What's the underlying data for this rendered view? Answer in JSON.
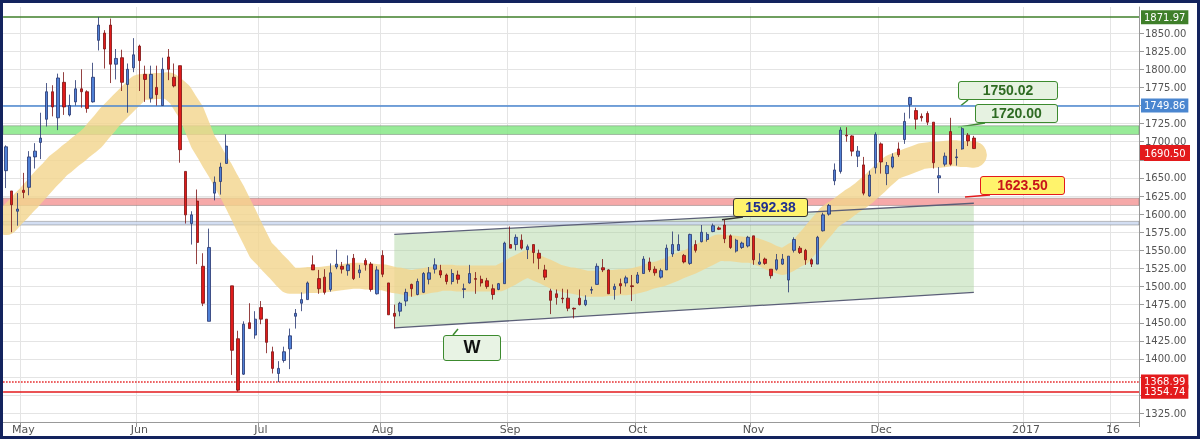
{
  "chart_data": {
    "type": "candlestick",
    "categories": [
      null,
      null,
      null,
      "May",
      null,
      null,
      null,
      null,
      null,
      null,
      null,
      null,
      null,
      null,
      null,
      null,
      null,
      null,
      null,
      null,
      null,
      null,
      null,
      "Jun",
      null,
      null,
      null,
      null,
      null,
      null,
      null,
      null,
      null,
      null,
      null,
      null,
      null,
      null,
      null,
      null,
      null,
      null,
      null,
      null,
      "Jul",
      null,
      null,
      null,
      null,
      null,
      null,
      null,
      null,
      null,
      null,
      null,
      null,
      null,
      null,
      null,
      null,
      null,
      null,
      null,
      null,
      "Aug",
      null,
      null,
      null,
      null,
      null,
      null,
      null,
      null,
      null,
      null,
      null,
      null,
      null,
      null,
      null,
      null,
      null,
      null,
      null,
      null,
      null,
      "Sep",
      null,
      null,
      null,
      null,
      null,
      null,
      null,
      null,
      null,
      null,
      null,
      null,
      null,
      null,
      null,
      null,
      null,
      null,
      null,
      null,
      null,
      "Oct",
      null,
      null,
      null,
      null,
      null,
      null,
      null,
      null,
      null,
      null,
      null,
      null,
      null,
      null,
      null,
      null,
      null,
      null,
      null,
      "Nov",
      null,
      null,
      null,
      null,
      null,
      null,
      null,
      null,
      null,
      null,
      null,
      null,
      null,
      null,
      null,
      null,
      null,
      null,
      null,
      null,
      null,
      "Dec",
      null,
      null,
      null,
      null,
      null,
      null,
      null,
      null,
      null,
      null,
      null,
      null,
      null,
      null,
      null,
      null,
      null,
      null,
      null,
      null,
      null,
      null,
      null,
      null,
      "2017",
      null,
      null,
      null,
      null,
      null,
      null,
      null,
      null,
      null,
      null,
      null,
      null,
      null,
      null,
      "16",
      null,
      null,
      null,
      null
    ],
    "series": [
      {
        "ohlc": [
          [
            1660,
            1695,
            1636,
            1693
          ],
          [
            1632,
            1632,
            1575,
            1613
          ],
          [
            1604,
            1629,
            1584,
            1607
          ],
          [
            1633,
            1657,
            1622,
            1630
          ],
          [
            1637,
            1687,
            1626,
            1679
          ],
          [
            1679,
            1698,
            1663,
            1687
          ],
          [
            1699,
            1740,
            1676,
            1705
          ],
          [
            1731,
            1781,
            1721,
            1769
          ],
          [
            1769,
            1778,
            1735,
            1748
          ],
          [
            1733,
            1794,
            1716,
            1788
          ],
          [
            1782,
            1796,
            1737,
            1748
          ],
          [
            1737,
            1765,
            1735,
            1750
          ],
          [
            1755,
            1785,
            1750,
            1773
          ],
          [
            1773,
            1800,
            1747,
            1769
          ],
          [
            1769,
            1771,
            1740,
            1746
          ],
          [
            1755,
            1809,
            1754,
            1789
          ],
          [
            1840,
            1872,
            1826,
            1861
          ],
          [
            1850,
            1854,
            1801,
            1828
          ],
          [
            1861,
            1870,
            1781,
            1807
          ],
          [
            1807,
            1828,
            1786,
            1815
          ],
          [
            1816,
            1827,
            1770,
            1782
          ],
          [
            1779,
            1808,
            1740,
            1800
          ],
          [
            1802,
            1843,
            1796,
            1820
          ],
          [
            1832,
            1834,
            1770,
            1812
          ],
          [
            1793,
            1805,
            1755,
            1786
          ],
          [
            1760,
            1805,
            1754,
            1793
          ],
          [
            1775,
            1805,
            1750,
            1765
          ],
          [
            1750,
            1816,
            1750,
            1800
          ],
          [
            1817,
            1828,
            1785,
            1800
          ],
          [
            1789,
            1808,
            1775,
            1777
          ],
          [
            1805,
            1805,
            1671,
            1689
          ],
          [
            1659,
            1659,
            1587,
            1599
          ],
          [
            1587,
            1604,
            1558,
            1599
          ],
          [
            1618,
            1634,
            1531,
            1561
          ],
          [
            1528,
            1546,
            1473,
            1477
          ],
          [
            1452,
            1580,
            1452,
            1554
          ],
          [
            1629,
            1652,
            1619,
            1644
          ],
          [
            1645,
            1671,
            1627,
            1665
          ],
          [
            1670,
            1710,
            1670,
            1694
          ],
          [
            1501,
            1501,
            1378,
            1412
          ],
          [
            1428,
            1439,
            1355,
            1357
          ],
          [
            1379,
            1452,
            1378,
            1448
          ],
          [
            1450,
            1477,
            1442,
            1442
          ],
          [
            1433,
            1466,
            1428,
            1455
          ],
          [
            1471,
            1480,
            1448,
            1455
          ],
          [
            1455,
            1455,
            1408,
            1423
          ],
          [
            1410,
            1417,
            1380,
            1387
          ],
          [
            1380,
            1397,
            1368,
            1387
          ],
          [
            1398,
            1417,
            1395,
            1410
          ],
          [
            1414,
            1442,
            1386,
            1432
          ],
          [
            1459,
            1469,
            1442,
            1463
          ],
          [
            1477,
            1492,
            1466,
            1482
          ],
          [
            1482,
            1507,
            1482,
            1505
          ],
          [
            1530,
            1543,
            1523,
            1523
          ],
          [
            1511,
            1523,
            1490,
            1497
          ],
          [
            1513,
            1524,
            1489,
            1492
          ],
          [
            1496,
            1532,
            1493,
            1519
          ],
          [
            1527,
            1551,
            1524,
            1531
          ],
          [
            1528,
            1534,
            1518,
            1524
          ],
          [
            1522,
            1543,
            1515,
            1530
          ],
          [
            1539,
            1545,
            1509,
            1511
          ],
          [
            1519,
            1530,
            1512,
            1523
          ],
          [
            1536,
            1539,
            1522,
            1530
          ],
          [
            1531,
            1534,
            1493,
            1496
          ],
          [
            1490,
            1528,
            1489,
            1523
          ],
          [
            1543,
            1550,
            1513,
            1517
          ],
          [
            1505,
            1505,
            1461,
            1461
          ],
          [
            1463,
            1475,
            1442,
            1459
          ],
          [
            1466,
            1479,
            1459,
            1477
          ],
          [
            1480,
            1497,
            1473,
            1492
          ],
          [
            1503,
            1504,
            1486,
            1497
          ],
          [
            1489,
            1511,
            1488,
            1507
          ],
          [
            1492,
            1520,
            1491,
            1518
          ],
          [
            1510,
            1527,
            1503,
            1519
          ],
          [
            1524,
            1539,
            1518,
            1530
          ],
          [
            1522,
            1530,
            1512,
            1516
          ],
          [
            1516,
            1518,
            1503,
            1507
          ],
          [
            1507,
            1524,
            1503,
            1518
          ],
          [
            1516,
            1522,
            1504,
            1510
          ],
          [
            1496,
            1504,
            1484,
            1497
          ],
          [
            1505,
            1530,
            1504,
            1518
          ],
          [
            1511,
            1520,
            1490,
            1510
          ],
          [
            1510,
            1515,
            1500,
            1505
          ],
          [
            1508,
            1512,
            1497,
            1500
          ],
          [
            1497,
            1503,
            1482,
            1489
          ],
          [
            1496,
            1505,
            1495,
            1504
          ],
          [
            1504,
            1562,
            1504,
            1560
          ],
          [
            1558,
            1583,
            1553,
            1553
          ],
          [
            1558,
            1572,
            1550,
            1568
          ],
          [
            1564,
            1572,
            1551,
            1553
          ],
          [
            1551,
            1558,
            1538,
            1555
          ],
          [
            1558,
            1558,
            1532,
            1547
          ],
          [
            1546,
            1551,
            1524,
            1539
          ],
          [
            1523,
            1530,
            1509,
            1513
          ],
          [
            1494,
            1497,
            1462,
            1481
          ],
          [
            1490,
            1496,
            1475,
            1485
          ],
          [
            1484,
            1497,
            1477,
            1483
          ],
          [
            1484,
            1496,
            1466,
            1470
          ],
          [
            1470,
            1471,
            1456,
            1469
          ],
          [
            1484,
            1496,
            1474,
            1475
          ],
          [
            1475,
            1488,
            1473,
            1481
          ],
          [
            1495,
            1500,
            1490,
            1496
          ],
          [
            1503,
            1532,
            1503,
            1528
          ],
          [
            1526,
            1538,
            1520,
            1523
          ],
          [
            1523,
            1524,
            1490,
            1490
          ],
          [
            1496,
            1504,
            1482,
            1500
          ],
          [
            1504,
            1511,
            1490,
            1501
          ],
          [
            1505,
            1515,
            1500,
            1512
          ],
          [
            1501,
            1516,
            1480,
            1500
          ],
          [
            1505,
            1520,
            1504,
            1516
          ],
          [
            1518,
            1542,
            1518,
            1538
          ],
          [
            1534,
            1540,
            1520,
            1523
          ],
          [
            1524,
            1528,
            1515,
            1519
          ],
          [
            1513,
            1525,
            1511,
            1522
          ],
          [
            1523,
            1558,
            1523,
            1553
          ],
          [
            1545,
            1576,
            1541,
            1558
          ],
          [
            1550,
            1572,
            1549,
            1558
          ],
          [
            1543,
            1545,
            1532,
            1534
          ],
          [
            1532,
            1573,
            1530,
            1572
          ],
          [
            1558,
            1564,
            1547,
            1550
          ],
          [
            1562,
            1585,
            1561,
            1575
          ],
          [
            1565,
            1575,
            1562,
            1572
          ],
          [
            1576,
            1587,
            1575,
            1584
          ],
          [
            1581,
            1583,
            1578,
            1579
          ],
          [
            1585,
            1592.38,
            1560,
            1566
          ],
          [
            1570,
            1572,
            1552,
            1554
          ],
          [
            1549,
            1566,
            1547,
            1564
          ],
          [
            1554,
            1562,
            1552,
            1560
          ],
          [
            1556,
            1570,
            1554,
            1568
          ],
          [
            1570,
            1570,
            1530,
            1537
          ],
          [
            1531,
            1546,
            1530,
            1534
          ],
          [
            1538,
            1540,
            1530,
            1532
          ],
          [
            1524,
            1524,
            1511,
            1515
          ],
          [
            1524,
            1545,
            1522,
            1537
          ],
          [
            1531,
            1545,
            1530,
            1538
          ],
          [
            1509,
            1542,
            1492,
            1542
          ],
          [
            1550,
            1568,
            1547,
            1565
          ],
          [
            1553,
            1556,
            1545,
            1547
          ],
          [
            1550,
            1552,
            1530,
            1537
          ],
          [
            1537,
            1539,
            1527,
            1531
          ],
          [
            1531,
            1570,
            1531,
            1568
          ],
          [
            1577,
            1602,
            1576,
            1599
          ],
          [
            1600,
            1614,
            1598,
            1612
          ],
          [
            1646,
            1670,
            1640,
            1661
          ],
          [
            1659,
            1720,
            1656,
            1716
          ],
          [
            1709,
            1720,
            1700,
            1708
          ],
          [
            1708,
            1709,
            1680,
            1687
          ],
          [
            1680,
            1694,
            1665,
            1687
          ],
          [
            1668,
            1679,
            1626,
            1629
          ],
          [
            1625,
            1660,
            1624,
            1654
          ],
          [
            1664,
            1713,
            1656,
            1710
          ],
          [
            1697,
            1699,
            1656,
            1672
          ],
          [
            1656,
            1672,
            1640,
            1667
          ],
          [
            1665,
            1684,
            1663,
            1679
          ],
          [
            1690,
            1699,
            1679,
            1682
          ],
          [
            1703,
            1740,
            1697,
            1728
          ],
          [
            1751,
            1762,
            1732,
            1761
          ],
          [
            1743,
            1747,
            1717,
            1731
          ],
          [
            1735,
            1739,
            1728,
            1733
          ],
          [
            1739,
            1742,
            1723,
            1727
          ],
          [
            1727,
            1727,
            1663,
            1671
          ],
          [
            1650,
            1665,
            1629,
            1653
          ],
          [
            1669,
            1685,
            1666,
            1680
          ],
          [
            1714,
            1733,
            1667,
            1669
          ],
          [
            1678,
            1690,
            1667,
            1679
          ],
          [
            1690,
            1720,
            1689,
            1718
          ],
          [
            1709,
            1712,
            1694,
            1701
          ],
          [
            1705,
            1708,
            1690,
            1690.5
          ],
          null,
          null,
          null,
          null,
          null,
          null,
          null,
          null,
          null,
          null,
          null,
          null,
          null,
          null,
          null,
          null,
          null,
          null,
          null,
          null,
          null,
          null,
          null,
          null,
          null,
          null,
          null,
          null
        ]
      },
      {
        "type": "line",
        "color": "#f3d58c",
        "values": [
          1589,
          1598,
          1606,
          1615,
          1623,
          1632,
          1641,
          1650,
          1658,
          1667,
          1673,
          1680,
          1686,
          1693,
          1699,
          1706,
          1716,
          1725,
          1735,
          1743,
          1751,
          1759,
          1767,
          1775,
          1776,
          1776,
          1777,
          1777,
          1778,
          1772,
          1765,
          1752,
          1740,
          1720,
          1700,
          1687,
          1673,
          1660,
          1645,
          1631,
          1615,
          1599,
          1582,
          1566,
          1550,
          1542,
          1533,
          1525,
          1516,
          1508,
          1508,
          1508,
          1509,
          1509,
          1509,
          1510,
          1511,
          1512,
          1513,
          1514,
          1515,
          1515,
          1514,
          1514,
          1513,
          1513,
          1511,
          1509,
          1508,
          1506,
          1504,
          1506,
          1507,
          1509,
          1510,
          1512,
          1512,
          1512,
          1511,
          1511,
          1511,
          1511,
          1511,
          1511,
          1511,
          1511,
          1515,
          1519,
          1524,
          1528,
          1532,
          1528,
          1524,
          1521,
          1517,
          1513,
          1511,
          1509,
          1508,
          1506,
          1504,
          1504,
          1504,
          1504,
          1505,
          1505,
          1506,
          1506,
          1507,
          1509,
          1511,
          1514,
          1516,
          1518,
          1521,
          1524,
          1528,
          1531,
          1534,
          1538,
          1542,
          1546,
          1550,
          1554,
          1553,
          1553,
          1552,
          1551,
          1551,
          1550,
          1547,
          1544,
          1540,
          1537,
          1534,
          1538,
          1543,
          1547,
          1557,
          1566,
          1576,
          1585,
          1595,
          1601,
          1606,
          1612,
          1618,
          1623,
          1629,
          1636,
          1643,
          1651,
          1658,
          1665,
          1668,
          1671,
          1674,
          1677,
          1680,
          1681,
          1682,
          1682,
          1683,
          1684,
          1684,
          1683,
          1683,
          1682,
          null,
          null,
          null,
          null,
          null,
          null,
          null,
          null,
          null,
          null,
          null,
          null,
          null,
          null,
          null,
          null,
          null,
          null,
          null,
          null,
          null,
          null,
          null,
          null,
          null,
          null,
          null,
          null
        ]
      },
      {
        "type": "line",
        "color": "#5b5f78",
        "values": [
          null,
          null,
          null,
          null,
          null,
          null,
          null,
          null,
          null,
          null,
          null,
          null,
          null,
          null,
          null,
          null,
          null,
          null,
          null,
          null,
          null,
          null,
          null,
          null,
          null,
          null,
          null,
          null,
          null,
          null,
          null,
          null,
          null,
          null,
          null,
          null,
          null,
          null,
          null,
          null,
          null,
          null,
          null,
          null,
          null,
          null,
          null,
          null,
          null,
          null,
          null,
          null,
          null,
          null,
          null,
          null,
          null,
          null,
          null,
          null,
          null,
          null,
          null,
          null,
          null,
          null,
          null,
          1572,
          null,
          null,
          null,
          null,
          null,
          null,
          null,
          null,
          null,
          null,
          null,
          null,
          null,
          null,
          null,
          null,
          null,
          null,
          null,
          null,
          null,
          null,
          null,
          null,
          null,
          null,
          null,
          null,
          null,
          null,
          null,
          null,
          null,
          null,
          null,
          null,
          null,
          null,
          null,
          null,
          null,
          null,
          null,
          null,
          null,
          null,
          null,
          null,
          null,
          null,
          null,
          null,
          null,
          null,
          null,
          null,
          null,
          null,
          null,
          null,
          null,
          null,
          null,
          null,
          null,
          null,
          null,
          null,
          null,
          null,
          null,
          null,
          null,
          null,
          null,
          null,
          null,
          null,
          null,
          null,
          null,
          null,
          null,
          null,
          null,
          null,
          null,
          null,
          null,
          null,
          null,
          null,
          null,
          null,
          null,
          null,
          null,
          null,
          null,
          1615,
          null,
          null,
          null,
          null,
          null,
          null,
          null,
          null,
          null,
          null,
          null,
          null,
          null,
          null,
          null,
          null,
          null,
          null,
          null,
          null,
          null,
          null,
          null,
          null,
          null,
          null,
          null,
          null
        ],
        "upper": [
          null,
          null,
          null,
          null,
          null,
          null,
          null,
          null,
          null,
          null,
          null,
          null,
          null,
          null,
          null,
          null,
          null,
          null,
          null,
          null,
          null,
          null,
          null,
          null,
          null,
          null,
          null,
          null,
          null,
          null,
          null,
          null,
          null,
          null,
          null,
          null,
          null,
          null,
          null,
          null,
          null,
          null,
          null,
          null,
          null,
          null,
          null,
          null,
          null,
          null,
          null,
          null,
          null,
          null,
          null,
          null,
          null,
          null,
          null,
          null,
          null,
          null,
          null,
          null,
          null,
          null,
          null,
          1572,
          null,
          null,
          null,
          null,
          null,
          null,
          null,
          null,
          null,
          null,
          null,
          null,
          null,
          null,
          null,
          null,
          null,
          null,
          null,
          null,
          null,
          null,
          null,
          null,
          null,
          null,
          null,
          null,
          null,
          null,
          null,
          null,
          null,
          null,
          null,
          null,
          null,
          null,
          null,
          null,
          null,
          null,
          null,
          null,
          null,
          null,
          null,
          null,
          null,
          null,
          null,
          null,
          null,
          null,
          null,
          null,
          null,
          null,
          null,
          null,
          null,
          null,
          null,
          null,
          null,
          null,
          null,
          null,
          null,
          null,
          null,
          null,
          null,
          null,
          null,
          null,
          null,
          null,
          null,
          null,
          null,
          null,
          null,
          null,
          null,
          null,
          null,
          null,
          null,
          null,
          null,
          null,
          null,
          null,
          null,
          null,
          null,
          null,
          null,
          1615,
          null,
          null,
          null,
          null,
          null,
          null,
          null,
          null,
          null,
          null,
          null,
          null,
          null,
          null,
          null,
          null,
          null,
          null,
          null,
          null,
          null,
          null,
          null,
          null,
          null,
          null,
          null,
          null
        ],
        "lower": [
          null,
          null,
          null,
          null,
          null,
          null,
          null,
          null,
          null,
          null,
          null,
          null,
          null,
          null,
          null,
          null,
          null,
          null,
          null,
          null,
          null,
          null,
          null,
          null,
          null,
          null,
          null,
          null,
          null,
          null,
          null,
          null,
          null,
          null,
          null,
          null,
          null,
          null,
          null,
          null,
          null,
          null,
          null,
          null,
          null,
          null,
          null,
          null,
          null,
          null,
          null,
          null,
          null,
          null,
          null,
          null,
          null,
          null,
          null,
          null,
          null,
          null,
          null,
          null,
          null,
          null,
          null,
          1443,
          null,
          null,
          null,
          null,
          null,
          null,
          null,
          null,
          null,
          null,
          null,
          null,
          null,
          null,
          null,
          null,
          null,
          null,
          null,
          null,
          null,
          null,
          null,
          null,
          null,
          null,
          null,
          null,
          null,
          null,
          null,
          null,
          null,
          null,
          null,
          null,
          null,
          null,
          null,
          null,
          null,
          null,
          null,
          null,
          null,
          null,
          null,
          null,
          null,
          null,
          null,
          null,
          null,
          null,
          null,
          null,
          null,
          null,
          null,
          null,
          null,
          null,
          null,
          null,
          null,
          null,
          null,
          null,
          null,
          null,
          null,
          null,
          null,
          null,
          null,
          null,
          null,
          null,
          null,
          null,
          null,
          null,
          null,
          null,
          null,
          null,
          null,
          null,
          null,
          null,
          null,
          null,
          null,
          null,
          null,
          null,
          null,
          null,
          null,
          1492,
          null,
          null,
          null,
          null,
          null,
          null,
          null,
          null,
          null,
          null,
          null,
          null,
          null,
          null,
          null,
          null,
          null,
          null,
          null,
          null,
          null,
          null,
          null,
          null,
          null,
          null,
          null,
          null
        ]
      },
      {
        "type": "line",
        "color": "#5b5f78",
        "line_style": "solid",
        "values": [
          null,
          null,
          null,
          null,
          null,
          null,
          null,
          null,
          null,
          null,
          null,
          null,
          null,
          null,
          null,
          null,
          null,
          null,
          null,
          null,
          null,
          null,
          null,
          null,
          null,
          null,
          null,
          null,
          null,
          null,
          null,
          null,
          null,
          null,
          null,
          null,
          null,
          null,
          null,
          null,
          null,
          null,
          null,
          null,
          null,
          null,
          null,
          null,
          null,
          null,
          null,
          null,
          null,
          null,
          null,
          null,
          null,
          null,
          null,
          null,
          null,
          null,
          null,
          null,
          null,
          null,
          null,
          1443,
          null,
          null,
          null,
          null,
          null,
          null,
          null,
          null,
          null,
          null,
          null,
          null,
          null,
          null,
          null,
          null,
          null,
          null,
          null,
          null,
          null,
          null,
          null,
          null,
          null,
          null,
          null,
          null,
          null,
          null,
          null,
          null,
          null,
          null,
          null,
          null,
          null,
          null,
          null,
          null,
          null,
          null,
          null,
          null,
          null,
          null,
          null,
          null,
          null,
          null,
          null,
          null,
          null,
          null,
          null,
          null,
          null,
          null,
          null,
          null,
          null,
          null,
          null,
          null,
          null,
          null,
          null,
          null,
          null,
          null,
          null,
          null,
          null,
          null,
          null,
          null,
          null,
          null,
          null,
          null,
          null,
          null,
          null,
          null,
          null,
          null,
          null,
          null,
          null,
          null,
          null,
          null,
          null,
          null,
          null,
          null,
          null,
          null,
          null,
          1492,
          null,
          null,
          null,
          null,
          null,
          null,
          null,
          null,
          null,
          null,
          null,
          null,
          null,
          null,
          null,
          null,
          null,
          null,
          null,
          null,
          null,
          null,
          null,
          null,
          null,
          null,
          null,
          null
        ]
      }
    ],
    "ylim": [
      1313,
      1886
    ],
    "yticks": [
      {
        "value": 1325,
        "label": "1325.00"
      },
      {
        "value": 1350,
        "label": null
      },
      {
        "value": 1375,
        "label": null
      },
      {
        "value": 1400,
        "label": "1400.00"
      },
      {
        "value": 1425,
        "label": "1425.00"
      },
      {
        "value": 1450,
        "label": "1450.00"
      },
      {
        "value": 1475,
        "label": "1475.00"
      },
      {
        "value": 1500,
        "label": "1500.00"
      },
      {
        "value": 1525,
        "label": "1525.00"
      },
      {
        "value": 1550,
        "label": "1550.00"
      },
      {
        "value": 1575,
        "label": "1575.00"
      },
      {
        "value": 1600,
        "label": "1600.00"
      },
      {
        "value": 1625,
        "label": "1625.00"
      },
      {
        "value": 1650,
        "label": "1650.00"
      },
      {
        "value": 1675,
        "label": null
      },
      {
        "value": 1700,
        "label": "1700.00"
      },
      {
        "value": 1725,
        "label": "1725.00"
      },
      {
        "value": 1750,
        "label": null
      },
      {
        "value": 1775,
        "label": "1775.00"
      },
      {
        "value": 1800,
        "label": "1800.00"
      },
      {
        "value": 1825,
        "label": "1825.00"
      },
      {
        "value": 1850,
        "label": "1850.00"
      }
    ],
    "ref_lines": [
      {
        "axis": "y",
        "value": 1871.97,
        "label": "1871.97",
        "color": "#3f7f2a"
      },
      {
        "axis": "y",
        "value": 1749.86,
        "label": "1749.86",
        "color": "#4a86d0"
      },
      {
        "axis": "y",
        "value": 1368.99,
        "label": "1368.99",
        "color": "#e31a1c",
        "line_style": "dotted"
      },
      {
        "axis": "y",
        "value": 1354.74,
        "label": "1354.74",
        "color": "#e31a1c"
      }
    ],
    "bands": [
      {
        "axis": "y",
        "from": 1710,
        "to": 1722,
        "color": "#86e886"
      },
      {
        "axis": "y",
        "from": 1612,
        "to": 1622,
        "color": "#f59a9a"
      },
      {
        "axis": "y",
        "from": 1585,
        "to": 1590,
        "color": "#cbd8f0"
      }
    ],
    "annotations": [
      {
        "text": "1750.02",
        "y": 1750.02
      },
      {
        "text": "1720.00",
        "y": 1720
      },
      {
        "text": "1623.50",
        "y": 1623.5
      },
      {
        "text": "1592.38",
        "y": 1592.38
      },
      "W",
      "1690.50"
    ],
    "grid": true
  }
}
